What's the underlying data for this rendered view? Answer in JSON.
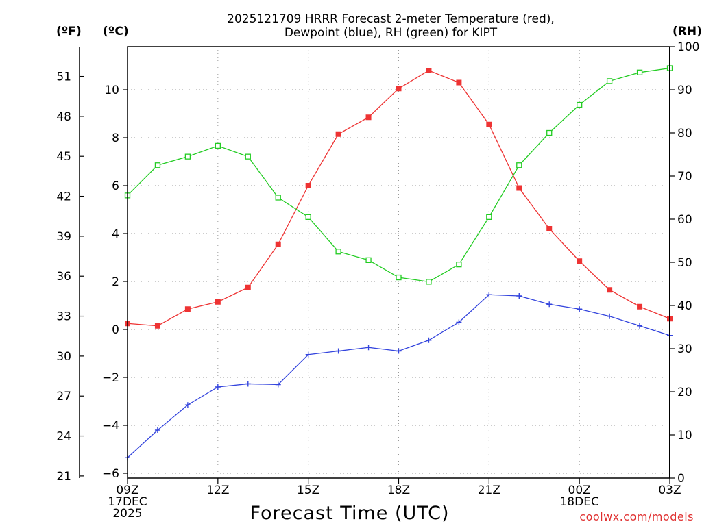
{
  "chart_data": {
    "type": "line",
    "title_line1": "2025121709 HRRR Forecast 2-meter Temperature (red),",
    "title_line2": "Dewpoint (blue), RH (green) for KIPT",
    "xlabel": "Forecast Time (UTC)",
    "unit_f": "(ºF)",
    "unit_c": "(ºC)",
    "unit_rh": "(RH)",
    "credit": "coolwx.com/models",
    "x_hours": [
      9,
      10,
      11,
      12,
      13,
      14,
      15,
      16,
      17,
      18,
      19,
      20,
      21,
      22,
      23,
      24,
      25,
      26,
      27
    ],
    "x_ticks": [
      {
        "hour": 9,
        "lines": [
          "09Z",
          "17DEC",
          "2025"
        ]
      },
      {
        "hour": 12,
        "lines": [
          "12Z"
        ]
      },
      {
        "hour": 15,
        "lines": [
          "15Z"
        ]
      },
      {
        "hour": 18,
        "lines": [
          "18Z"
        ]
      },
      {
        "hour": 21,
        "lines": [
          "21Z"
        ]
      },
      {
        "hour": 24,
        "lines": [
          "00Z",
          "18DEC"
        ]
      },
      {
        "hour": 27,
        "lines": [
          "03Z"
        ]
      }
    ],
    "ylim_c": [
      -6.2,
      11.8
    ],
    "yticks_c": [
      -6,
      -4,
      -2,
      0,
      2,
      4,
      6,
      8,
      10
    ],
    "yticks_f": [
      21,
      24,
      27,
      30,
      33,
      36,
      39,
      42,
      45,
      48,
      51
    ],
    "ylim_rh": [
      0,
      100
    ],
    "yticks_rh": [
      0,
      10,
      20,
      30,
      40,
      50,
      60,
      70,
      80,
      90,
      100
    ],
    "colors": {
      "temperature": "#ee3333",
      "dewpoint": "#3344dd",
      "rh": "#22cc22",
      "grid": "#9a9a9a"
    },
    "series": [
      {
        "name": "Temperature",
        "unit": "C",
        "color": "#ee3333",
        "marker": "filled-square",
        "values": [
          0.25,
          0.15,
          0.85,
          1.15,
          1.75,
          3.55,
          6.0,
          8.15,
          8.85,
          10.05,
          10.8,
          10.3,
          8.55,
          5.9,
          4.2,
          2.85,
          1.65,
          0.95,
          0.45
        ]
      },
      {
        "name": "Dewpoint",
        "unit": "C",
        "color": "#3344dd",
        "marker": "plus",
        "values": [
          -5.35,
          -4.2,
          -3.15,
          -2.4,
          -2.27,
          -2.3,
          -1.05,
          -0.9,
          -0.75,
          -0.9,
          -0.45,
          0.3,
          1.45,
          1.4,
          1.05,
          0.85,
          0.55,
          0.15,
          -0.25
        ]
      },
      {
        "name": "RH",
        "unit": "%",
        "color": "#22cc22",
        "marker": "open-square",
        "values": [
          65.5,
          72.5,
          74.5,
          77,
          74.5,
          65,
          60.5,
          52.5,
          50.5,
          46.5,
          45.5,
          49.5,
          60.5,
          72.5,
          80,
          86.5,
          92,
          94,
          95
        ]
      }
    ]
  }
}
